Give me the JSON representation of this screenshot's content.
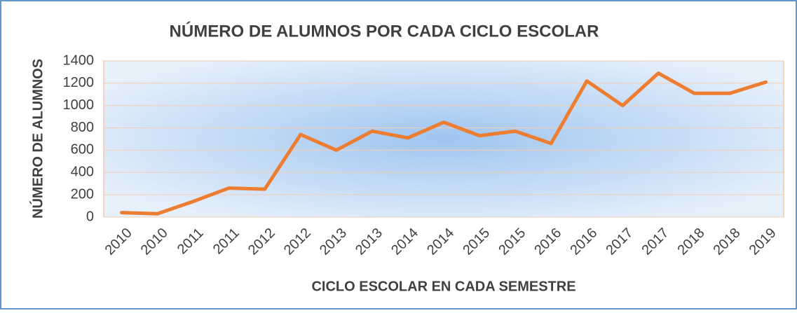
{
  "chart_data": {
    "type": "line",
    "title": "NÚMERO DE ALUMNOS POR CADA CICLO ESCOLAR",
    "x_label": "CICLO ESCOLAR EN CADA SEMESTRE",
    "y_label": "NÚMERO DE ALUMNOS",
    "categories": [
      "2010",
      "2010",
      "2011",
      "2011",
      "2012",
      "2012",
      "2013",
      "2013",
      "2014",
      "2014",
      "2015",
      "2015",
      "2016",
      "2016",
      "2017",
      "2017",
      "2018",
      "2018",
      "2019"
    ],
    "values": [
      40,
      30,
      140,
      260,
      250,
      740,
      600,
      770,
      710,
      850,
      730,
      770,
      660,
      1220,
      1000,
      1290,
      1110,
      1110,
      1210
    ],
    "color": "#ed7d31",
    "ylim": [
      0,
      1400
    ],
    "yticks": [
      0,
      200,
      400,
      600,
      800,
      1000,
      1200,
      1400
    ],
    "grid": true
  }
}
